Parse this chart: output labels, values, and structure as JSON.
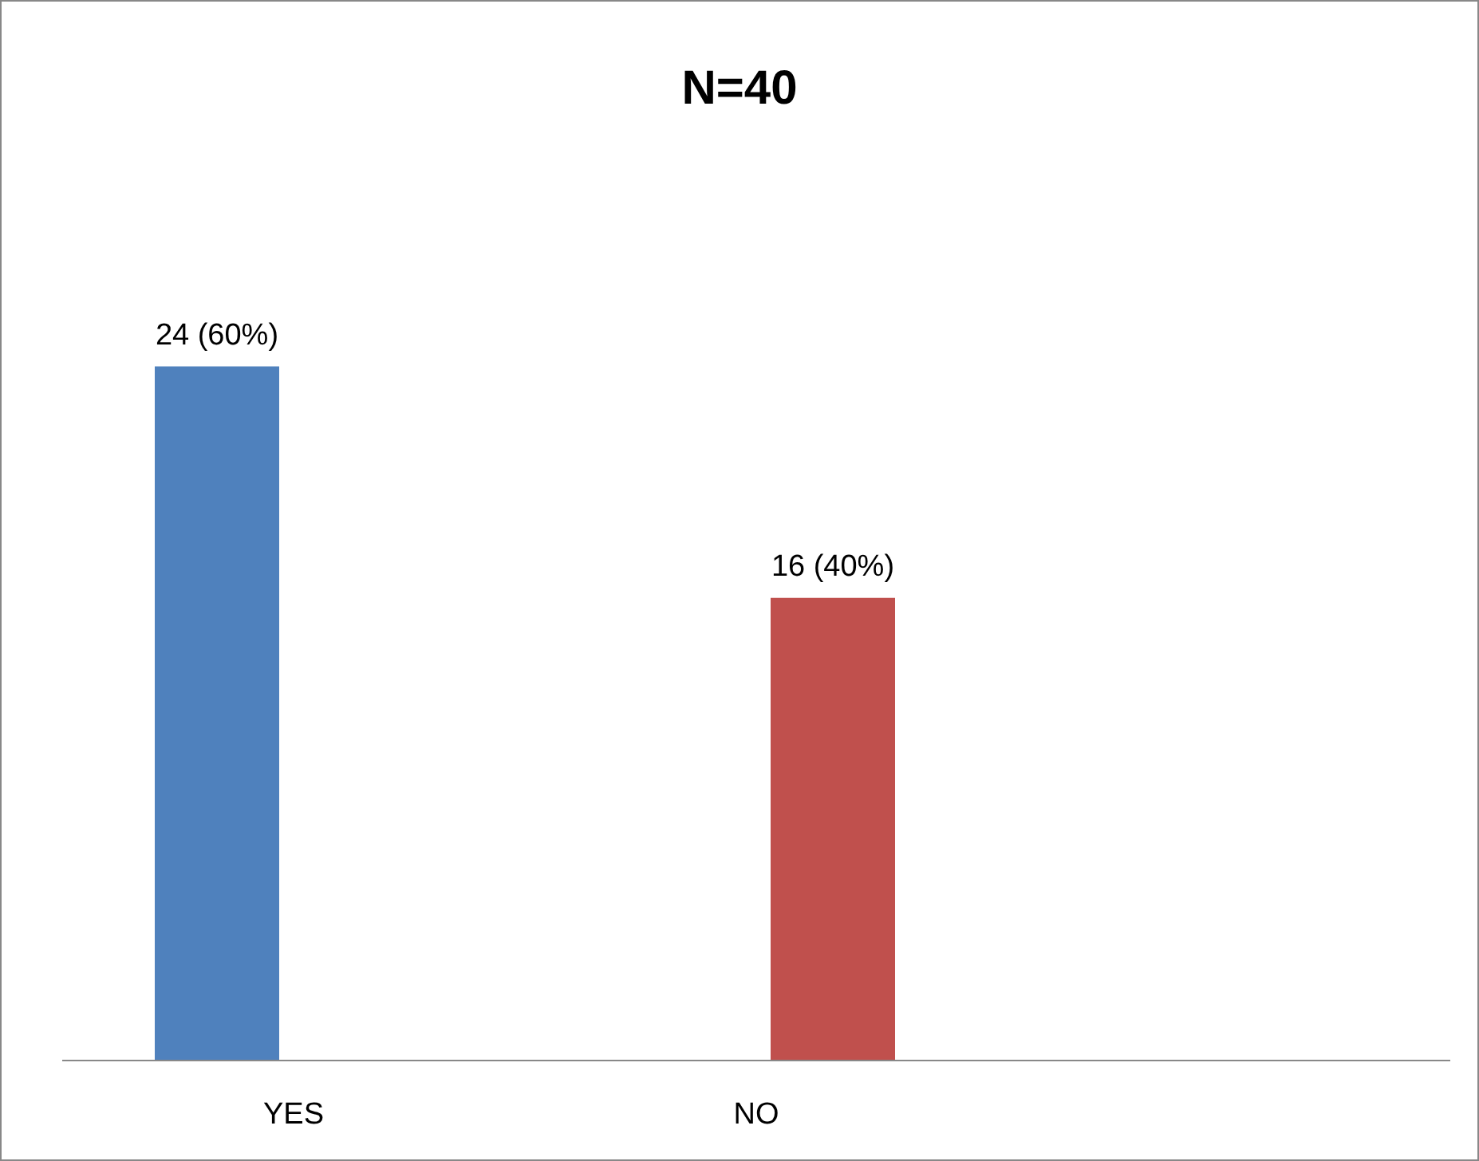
{
  "chart_data": {
    "type": "bar",
    "title": "N=40",
    "categories": [
      "YES",
      "NO",
      null
    ],
    "series": [
      {
        "color": "#4f81bd",
        "values": [
          24,
          null,
          null
        ],
        "value_labels": [
          "24 (60%)",
          null,
          null
        ]
      },
      {
        "color": "#c0504d",
        "values": [
          null,
          16,
          null
        ],
        "value_labels": [
          null,
          "16 (40%)",
          null
        ]
      }
    ],
    "legend": false,
    "grid": false
  }
}
